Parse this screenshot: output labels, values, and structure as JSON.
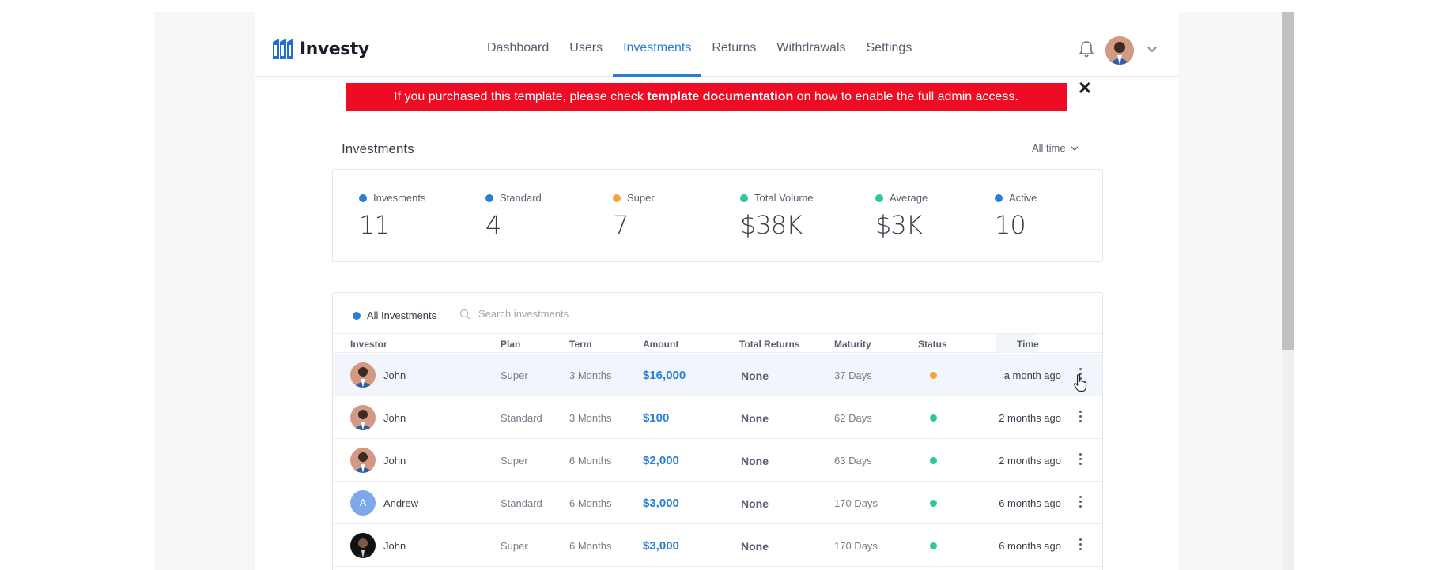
{
  "app": {
    "logo_text": "Investy"
  },
  "nav": {
    "items": [
      {
        "label": "Dashboard",
        "active": false
      },
      {
        "label": "Users",
        "active": false
      },
      {
        "label": "Investments",
        "active": true
      },
      {
        "label": "Returns",
        "active": false
      },
      {
        "label": "Withdrawals",
        "active": false
      },
      {
        "label": "Settings",
        "active": false
      }
    ]
  },
  "alert": {
    "text_before": "If you purchased this template, please check ",
    "text_bold": "template documentation",
    "text_after": " on how to enable the full admin access.",
    "close_glyph": "✕"
  },
  "section": {
    "title": "Investments",
    "range_label": "All time"
  },
  "stats": [
    {
      "label": "Invesments",
      "value": "11",
      "color": "#2a7ed3"
    },
    {
      "label": "Standard",
      "value": "4",
      "color": "#2a7ed3"
    },
    {
      "label": "Super",
      "value": "7",
      "color": "#f7a23b"
    },
    {
      "label": "Total Volume",
      "value": "$38K",
      "color": "#2ec5a0"
    },
    {
      "label": "Average",
      "value": "$3K",
      "color": "#2ec5a0"
    },
    {
      "label": "Active",
      "value": "10",
      "color": "#2a7ed3"
    }
  ],
  "table": {
    "filter_label": "All Investments",
    "search_placeholder": "Search investments",
    "headers": {
      "investor": "Investor",
      "plan": "Plan",
      "term": "Term",
      "amount": "Amount",
      "total_returns": "Total Returns",
      "maturity": "Maturity",
      "status": "Status",
      "time": "Time"
    },
    "rows": [
      {
        "investor": "John",
        "avatar": "photo",
        "plan": "Super",
        "term": "3 Months",
        "amount": "$16,000",
        "total_returns": "None",
        "maturity": "37 Days",
        "status_color": "#f7a23b",
        "time": "a month ago"
      },
      {
        "investor": "John",
        "avatar": "photo",
        "plan": "Standard",
        "term": "3 Months",
        "amount": "$100",
        "total_returns": "None",
        "maturity": "62 Days",
        "status_color": "#2ec5a0",
        "time": "2 months ago"
      },
      {
        "investor": "John",
        "avatar": "photo",
        "plan": "Super",
        "term": "6 Months",
        "amount": "$2,000",
        "total_returns": "None",
        "maturity": "63 Days",
        "status_color": "#2ec5a0",
        "time": "2 months ago"
      },
      {
        "investor": "Andrew",
        "avatar": "letter",
        "avatar_letter": "A",
        "plan": "Standard",
        "term": "6 Months",
        "amount": "$3,000",
        "total_returns": "None",
        "maturity": "170 Days",
        "status_color": "#2ec5a0",
        "time": "6 months ago"
      },
      {
        "investor": "John",
        "avatar": "dark-photo",
        "plan": "Super",
        "term": "6 Months",
        "amount": "$3,000",
        "total_returns": "None",
        "maturity": "170 Days",
        "status_color": "#2ec5a0",
        "time": "6 months ago"
      }
    ]
  },
  "colors": {
    "accent": "#2a7ed3",
    "alert": "#ee0b24"
  }
}
